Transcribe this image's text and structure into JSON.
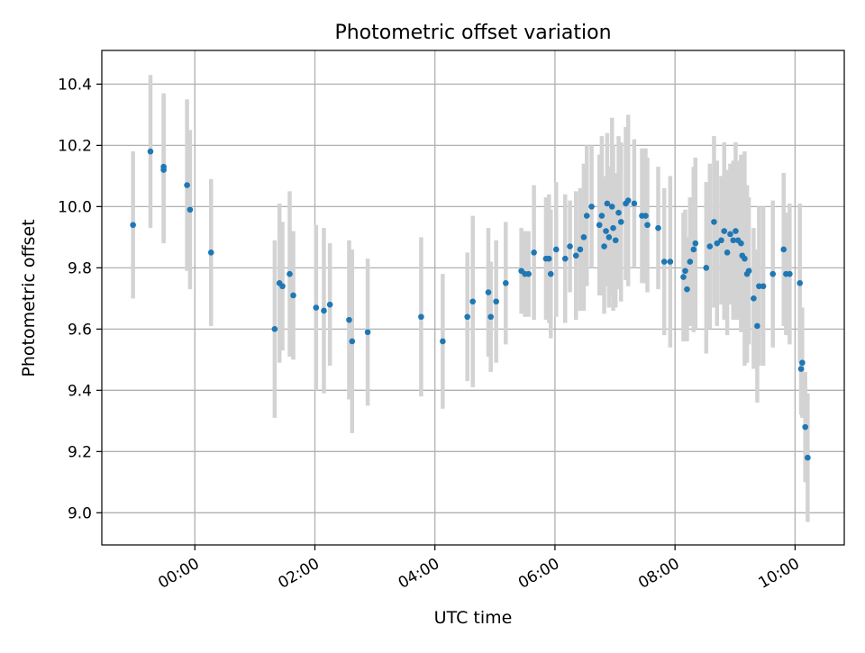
{
  "chart_data": {
    "type": "scatter",
    "title": "Photometric offset variation",
    "xlabel": "UTC time",
    "ylabel": "Photometric offset",
    "x_unit": "hours (UTC)",
    "xlim": [
      -1.55,
      10.82
    ],
    "ylim": [
      8.895,
      10.51
    ],
    "x_ticks": [
      {
        "value": 0,
        "label": "00:00"
      },
      {
        "value": 2,
        "label": "02:00"
      },
      {
        "value": 4,
        "label": "04:00"
      },
      {
        "value": 6,
        "label": "06:00"
      },
      {
        "value": 8,
        "label": "08:00"
      },
      {
        "value": 10,
        "label": "10:00"
      }
    ],
    "y_ticks": [
      {
        "value": 9.0,
        "label": "9.0"
      },
      {
        "value": 9.2,
        "label": "9.2"
      },
      {
        "value": 9.4,
        "label": "9.4"
      },
      {
        "value": 9.6,
        "label": "9.6"
      },
      {
        "value": 9.8,
        "label": "9.8"
      },
      {
        "value": 10.0,
        "label": "10.0"
      },
      {
        "value": 10.2,
        "label": "10.2"
      },
      {
        "value": 10.4,
        "label": "10.4"
      }
    ],
    "grid": true,
    "legend": false,
    "x_tick_rotation": "30°",
    "colors": {
      "points": "#1f77b4",
      "error_bars": "#d3d3d3",
      "grid": "#b0b0b0"
    },
    "series": [
      {
        "x": [
          -1.03,
          -0.74,
          -0.52,
          -0.52,
          -0.13,
          -0.08,
          0.27,
          1.33,
          1.41,
          1.46,
          1.58,
          1.64,
          2.02,
          2.15,
          2.25,
          2.57,
          2.62,
          2.88,
          3.77,
          4.13,
          4.54,
          4.63,
          4.89,
          4.93,
          5.02,
          5.18,
          5.44,
          5.5,
          5.56,
          5.65,
          5.85,
          5.9,
          5.93,
          6.02,
          6.17,
          6.25,
          6.35,
          6.42,
          6.48,
          6.53,
          6.61,
          6.74,
          6.78,
          6.82,
          6.85,
          6.87,
          6.9,
          6.95,
          6.97,
          7.01,
          7.06,
          7.1,
          7.18,
          7.22,
          7.32,
          7.45,
          7.51,
          7.54,
          7.72,
          7.82,
          7.92,
          8.14,
          8.17,
          8.2,
          8.25,
          8.31,
          8.34,
          8.52,
          8.58,
          8.65,
          8.7,
          8.77,
          8.82,
          8.87,
          8.92,
          8.97,
          9.01,
          9.05,
          9.1,
          9.12,
          9.16,
          9.2,
          9.23,
          9.31,
          9.37,
          9.4,
          9.47,
          9.63,
          9.81,
          9.85,
          9.91,
          10.08,
          10.1,
          10.12,
          10.17,
          10.21
        ],
        "y": [
          9.94,
          10.18,
          10.13,
          10.12,
          10.07,
          9.99,
          9.85,
          9.6,
          9.75,
          9.74,
          9.78,
          9.71,
          9.67,
          9.66,
          9.68,
          9.63,
          9.56,
          9.59,
          9.64,
          9.56,
          9.64,
          9.69,
          9.72,
          9.64,
          9.69,
          9.75,
          9.79,
          9.78,
          9.78,
          9.85,
          9.83,
          9.83,
          9.78,
          9.86,
          9.83,
          9.87,
          9.84,
          9.86,
          9.9,
          9.97,
          10.0,
          9.94,
          9.97,
          9.87,
          9.92,
          10.01,
          9.9,
          10.0,
          9.93,
          9.89,
          9.98,
          9.95,
          10.01,
          10.02,
          10.01,
          9.97,
          9.97,
          9.94,
          9.93,
          9.82,
          9.82,
          9.77,
          9.79,
          9.73,
          9.82,
          9.86,
          9.88,
          9.8,
          9.87,
          9.95,
          9.88,
          9.89,
          9.92,
          9.85,
          9.91,
          9.89,
          9.92,
          9.89,
          9.88,
          9.84,
          9.83,
          9.78,
          9.79,
          9.7,
          9.61,
          9.74,
          9.74,
          9.78,
          9.86,
          9.78,
          9.78,
          9.75,
          9.47,
          9.49,
          9.28,
          9.18
        ],
        "err": [
          0.24,
          0.25,
          0.24,
          0.24,
          0.28,
          0.26,
          0.24,
          0.29,
          0.26,
          0.21,
          0.27,
          0.21,
          0.27,
          0.27,
          0.2,
          0.26,
          0.3,
          0.24,
          0.26,
          0.22,
          0.21,
          0.28,
          0.21,
          0.18,
          0.2,
          0.2,
          0.14,
          0.14,
          0.14,
          0.22,
          0.2,
          0.21,
          0.21,
          0.22,
          0.21,
          0.15,
          0.21,
          0.2,
          0.24,
          0.23,
          0.2,
          0.23,
          0.26,
          0.22,
          0.18,
          0.23,
          0.23,
          0.29,
          0.27,
          0.22,
          0.25,
          0.26,
          0.25,
          0.28,
          0.21,
          0.22,
          0.22,
          0.22,
          0.2,
          0.24,
          0.28,
          0.21,
          0.2,
          0.17,
          0.21,
          0.27,
          0.28,
          0.28,
          0.27,
          0.28,
          0.27,
          0.21,
          0.29,
          0.27,
          0.23,
          0.26,
          0.29,
          0.26,
          0.29,
          0.2,
          0.35,
          0.29,
          0.24,
          0.23,
          0.25,
          0.26,
          0.26,
          0.24,
          0.25,
          0.2,
          0.23,
          0.26,
          0.15,
          0.18,
          0.18,
          0.21
        ]
      }
    ]
  }
}
